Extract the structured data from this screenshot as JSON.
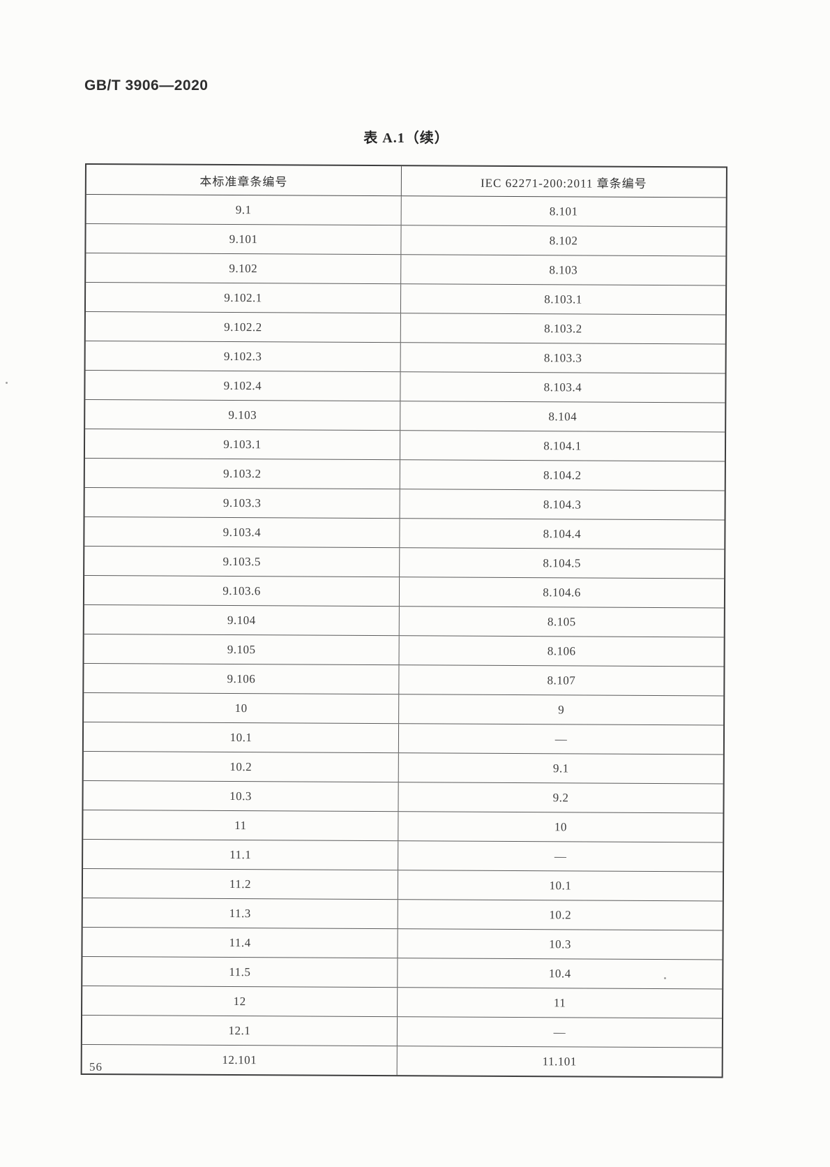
{
  "page": {
    "standard_code": "GB/T 3906—2020",
    "page_number": "56"
  },
  "table": {
    "title": "表 A.1（续）",
    "columns": [
      "本标准章条编号",
      "IEC 62271-200:2011 章条编号"
    ],
    "rows": [
      [
        "9.1",
        "8.101"
      ],
      [
        "9.101",
        "8.102"
      ],
      [
        "9.102",
        "8.103"
      ],
      [
        "9.102.1",
        "8.103.1"
      ],
      [
        "9.102.2",
        "8.103.2"
      ],
      [
        "9.102.3",
        "8.103.3"
      ],
      [
        "9.102.4",
        "8.103.4"
      ],
      [
        "9.103",
        "8.104"
      ],
      [
        "9.103.1",
        "8.104.1"
      ],
      [
        "9.103.2",
        "8.104.2"
      ],
      [
        "9.103.3",
        "8.104.3"
      ],
      [
        "9.103.4",
        "8.104.4"
      ],
      [
        "9.103.5",
        "8.104.5"
      ],
      [
        "9.103.6",
        "8.104.6"
      ],
      [
        "9.104",
        "8.105"
      ],
      [
        "9.105",
        "8.106"
      ],
      [
        "9.106",
        "8.107"
      ],
      [
        "10",
        "9"
      ],
      [
        "10.1",
        "—"
      ],
      [
        "10.2",
        "9.1"
      ],
      [
        "10.3",
        "9.2"
      ],
      [
        "11",
        "10"
      ],
      [
        "11.1",
        "—"
      ],
      [
        "11.2",
        "10.1"
      ],
      [
        "11.3",
        "10.2"
      ],
      [
        "11.4",
        "10.3"
      ],
      [
        "11.5",
        "10.4"
      ],
      [
        "12",
        "11"
      ],
      [
        "12.1",
        "—"
      ],
      [
        "12.101",
        "11.101"
      ]
    ]
  }
}
